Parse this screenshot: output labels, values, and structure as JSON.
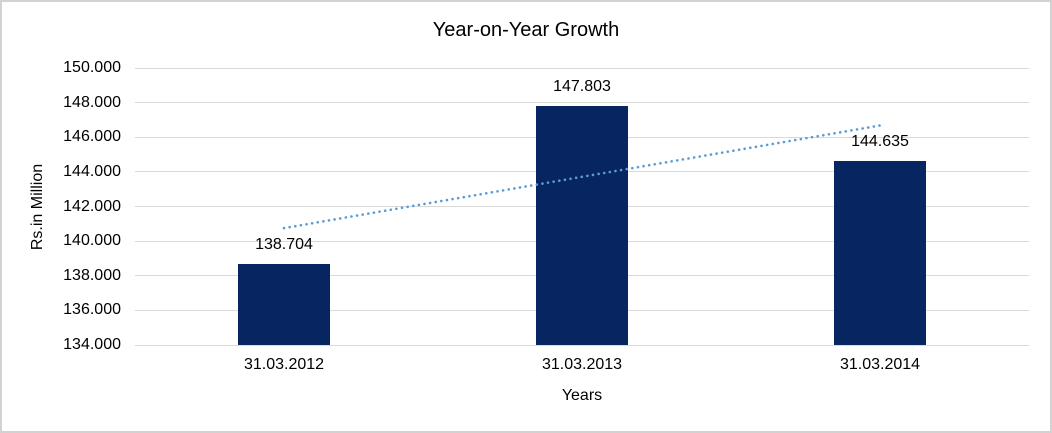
{
  "frame": {
    "background": "#FFFFFF",
    "border_color": "#D2D2D2"
  },
  "chart_data": {
    "type": "bar",
    "title": "Year-on-Year Growth",
    "xlabel": "Years",
    "ylabel": "Rs.in Million",
    "categories": [
      "31.03.2012",
      "31.03.2013",
      "31.03.2014"
    ],
    "values": [
      138.704,
      147.803,
      144.635
    ],
    "value_labels": [
      "138.704",
      "147.803",
      "144.635"
    ],
    "ylim": [
      134,
      150
    ],
    "ytick_step": 2,
    "ytick_labels": [
      "134.000",
      "136.000",
      "138.000",
      "140.000",
      "142.000",
      "144.000",
      "146.000",
      "148.000",
      "150.000"
    ],
    "grid": true,
    "legend": false,
    "colors": {
      "bar": "#072661",
      "trendline": "#5B9BD5",
      "gridline": "#D9D9D9",
      "text": "#000000"
    },
    "trendline": {
      "type": "linear",
      "style": "dotted",
      "start_value": 140.75,
      "end_value": 146.68
    }
  }
}
